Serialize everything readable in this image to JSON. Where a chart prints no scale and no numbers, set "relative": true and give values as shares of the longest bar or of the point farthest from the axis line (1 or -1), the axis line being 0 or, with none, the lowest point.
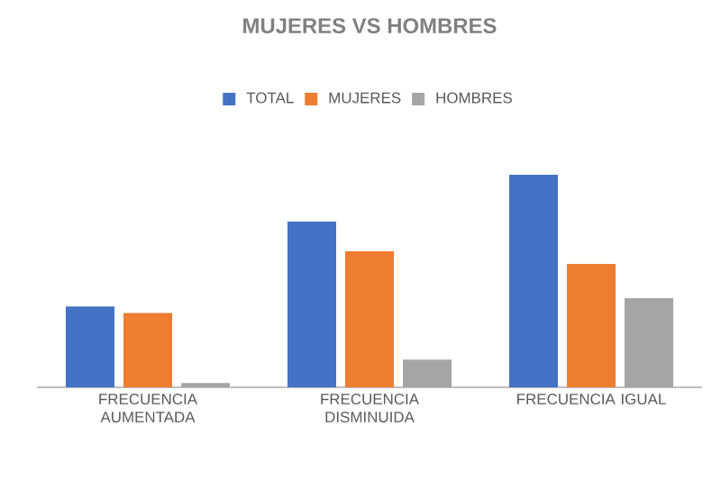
{
  "chart_data": {
    "type": "bar",
    "title": "MUJERES VS HOMBRES",
    "categories": [
      "FRECUENCIA AUMENTADA",
      "FRECUENCIA DISMINUIDA",
      "FRECUENCIA IGUAL"
    ],
    "relative": true,
    "legend": "top",
    "series": [
      {
        "name": "TOTAL",
        "color": "#4472c4",
        "values": [
          0.38,
          0.78,
          1
        ]
      },
      {
        "name": "MUJERES",
        "color": "#ed7d31",
        "values": [
          0.35,
          0.64,
          0.58
        ]
      },
      {
        "name": "HOMBRES",
        "color": "#a5a5a5",
        "values": [
          0.02,
          0.13,
          0.42
        ]
      }
    ]
  }
}
